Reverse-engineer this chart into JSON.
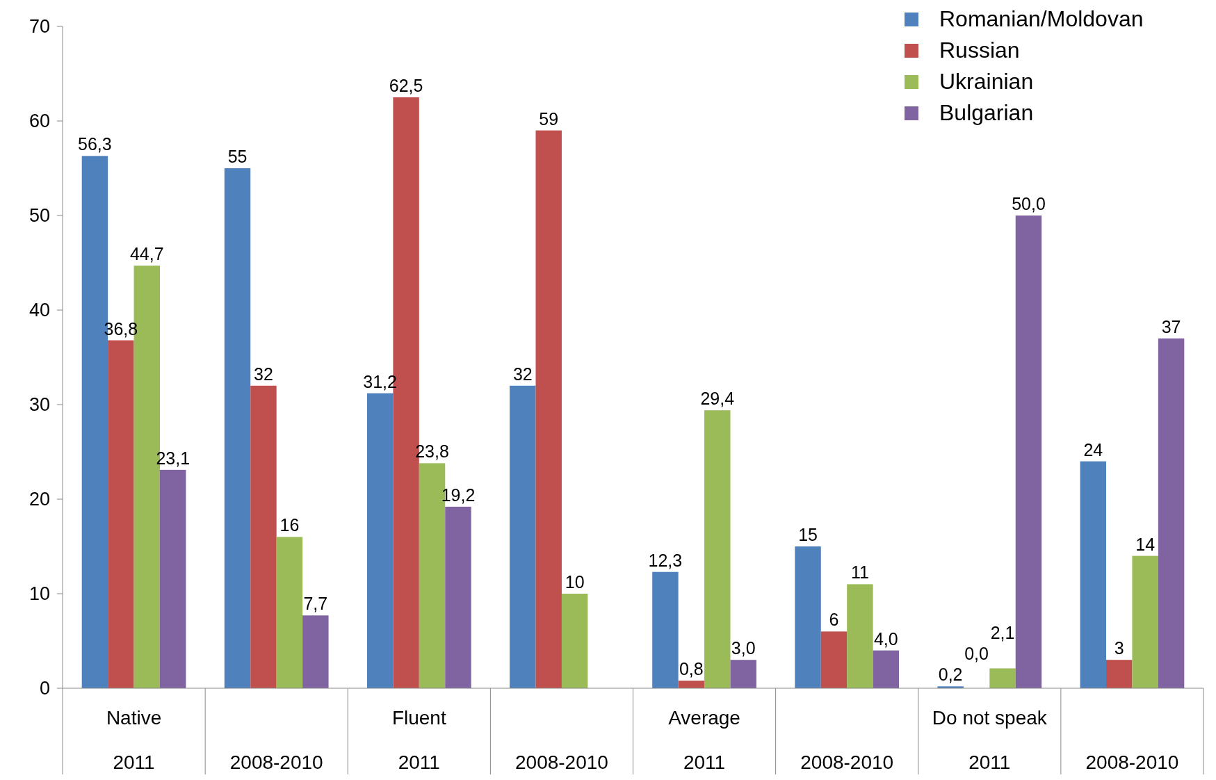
{
  "chart_data": {
    "type": "bar",
    "categories": [
      "Native 2011",
      "2008-2010",
      "Fluent 2011",
      "2008-2010",
      "Average 2011",
      "2008-2010",
      "Do not speak 2011",
      "2008-2010"
    ],
    "series": [
      {
        "name": "Romanian/Moldovan",
        "color": "#4f81bd",
        "values": [
          56.3,
          55,
          31.2,
          32,
          12.3,
          15,
          0.2,
          24
        ],
        "value_labels": [
          "56,3",
          "55",
          "31,2",
          "32",
          "12,3",
          "15",
          "0,2",
          "24"
        ]
      },
      {
        "name": "Russian",
        "color": "#c0504d",
        "values": [
          36.8,
          32,
          62.5,
          59,
          0.8,
          6,
          0.0,
          3
        ],
        "value_labels": [
          "36,8",
          "32",
          "62,5",
          "59",
          "0,8",
          "6",
          "0,0",
          "3"
        ]
      },
      {
        "name": "Ukrainian",
        "color": "#9bbb59",
        "values": [
          44.7,
          16,
          23.8,
          10,
          29.4,
          11,
          2.1,
          14
        ],
        "value_labels": [
          "44,7",
          "16",
          "23,8",
          "10",
          "29,4",
          "11",
          "2,1",
          "14"
        ]
      },
      {
        "name": "Bulgarian",
        "color": "#8064a2",
        "values": [
          23.1,
          7.7,
          19.2,
          null,
          3.0,
          4.0,
          50.0,
          37
        ],
        "value_labels": [
          "23,1",
          "7,7",
          "19,2",
          null,
          "3,0",
          "4,0",
          "50,0",
          "37"
        ]
      }
    ],
    "ylim": [
      0,
      70
    ],
    "yticks": [
      0,
      10,
      20,
      30,
      40,
      50,
      60,
      70
    ],
    "legend": "top right"
  }
}
